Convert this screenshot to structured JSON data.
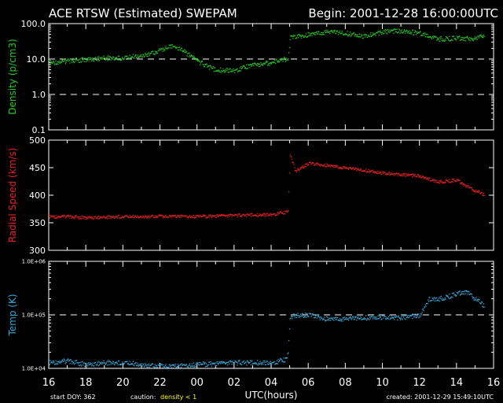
{
  "header": {
    "title": "ACE RTSW (Estimated) SWEPAM",
    "begin": "Begin: 2001-12-28 16:00:00UTC"
  },
  "footer": {
    "start_doy": "start DOY: 362",
    "caution_prefix": "caution:",
    "caution_flag": "density < 1",
    "xlabel": "UTC(hours)",
    "created": "created: 2001-12-29 15:49:10UTC"
  },
  "colors": {
    "density": "#22cc22",
    "speed": "#ee2020",
    "temp": "#33aadd",
    "caution": "#ffff00",
    "axes": "#ffffff"
  },
  "chart_data": [
    {
      "type": "scatter",
      "name": "density",
      "ylabel": "Density  (p/cm3)",
      "yscale": "log",
      "ylim": [
        0.1,
        100
      ],
      "yticks": [
        "100.0",
        "10.0",
        "1.0",
        "0.1"
      ],
      "reference_lines": [
        10,
        1
      ],
      "x": [
        0,
        1,
        2,
        3,
        4,
        5,
        6,
        6.5,
        7,
        7.5,
        8,
        9,
        10,
        11,
        12,
        12.5,
        12.9,
        13.0,
        14,
        15,
        16,
        17,
        18,
        19,
        20,
        21,
        22,
        23,
        23.5
      ],
      "values": [
        8,
        9,
        10,
        11,
        11,
        13,
        18,
        25,
        20,
        14,
        9,
        5,
        5,
        7,
        8,
        10,
        10,
        40,
        50,
        60,
        55,
        45,
        60,
        65,
        55,
        38,
        40,
        38,
        50
      ]
    },
    {
      "type": "scatter",
      "name": "speed",
      "ylabel": "Radial Speed  (km/s)",
      "yscale": "linear",
      "ylim": [
        300,
        500
      ],
      "yticks": [
        "500",
        "450",
        "400",
        "350",
        "300"
      ],
      "x": [
        0,
        1,
        2,
        3,
        4,
        5,
        6,
        7,
        8,
        9,
        10,
        11,
        12,
        12.8,
        12.9,
        13.0,
        13.3,
        14,
        15,
        16,
        17,
        18,
        19,
        20,
        20.5,
        21,
        22,
        22.5,
        23,
        23.5
      ],
      "values": [
        362,
        362,
        360,
        361,
        362,
        362,
        363,
        363,
        362,
        363,
        364,
        365,
        366,
        370,
        372,
        475,
        445,
        458,
        455,
        450,
        446,
        441,
        438,
        436,
        430,
        425,
        428,
        418,
        408,
        402
      ]
    },
    {
      "type": "scatter",
      "name": "temp",
      "ylabel": "Temp  (K)",
      "yscale": "log",
      "ylim": [
        10000,
        1000000
      ],
      "yticks": [
        "1.0E+06",
        "1.0E+05",
        "1.0E+04"
      ],
      "reference_lines": [
        100000
      ],
      "x": [
        0,
        1,
        2,
        3,
        4,
        5,
        6,
        7,
        8,
        9,
        10,
        11,
        12,
        12.8,
        12.9,
        13.0,
        13.3,
        14,
        15,
        16,
        17,
        18,
        19,
        20,
        20.5,
        21,
        22,
        22.5,
        23,
        23.5
      ],
      "values": [
        13000,
        14000,
        12000,
        13000,
        13000,
        12000,
        11500,
        11500,
        12000,
        12500,
        13000,
        13000,
        13000,
        15000,
        20000,
        90000,
        100000,
        100000,
        85000,
        85000,
        90000,
        92000,
        90000,
        100000,
        200000,
        200000,
        250000,
        280000,
        200000,
        150000
      ]
    }
  ],
  "x_axis": {
    "range_hours": [
      0,
      24
    ],
    "tick_labels": [
      "16",
      "18",
      "20",
      "22",
      "00",
      "02",
      "04",
      "06",
      "08",
      "10",
      "12",
      "14",
      "16"
    ]
  }
}
